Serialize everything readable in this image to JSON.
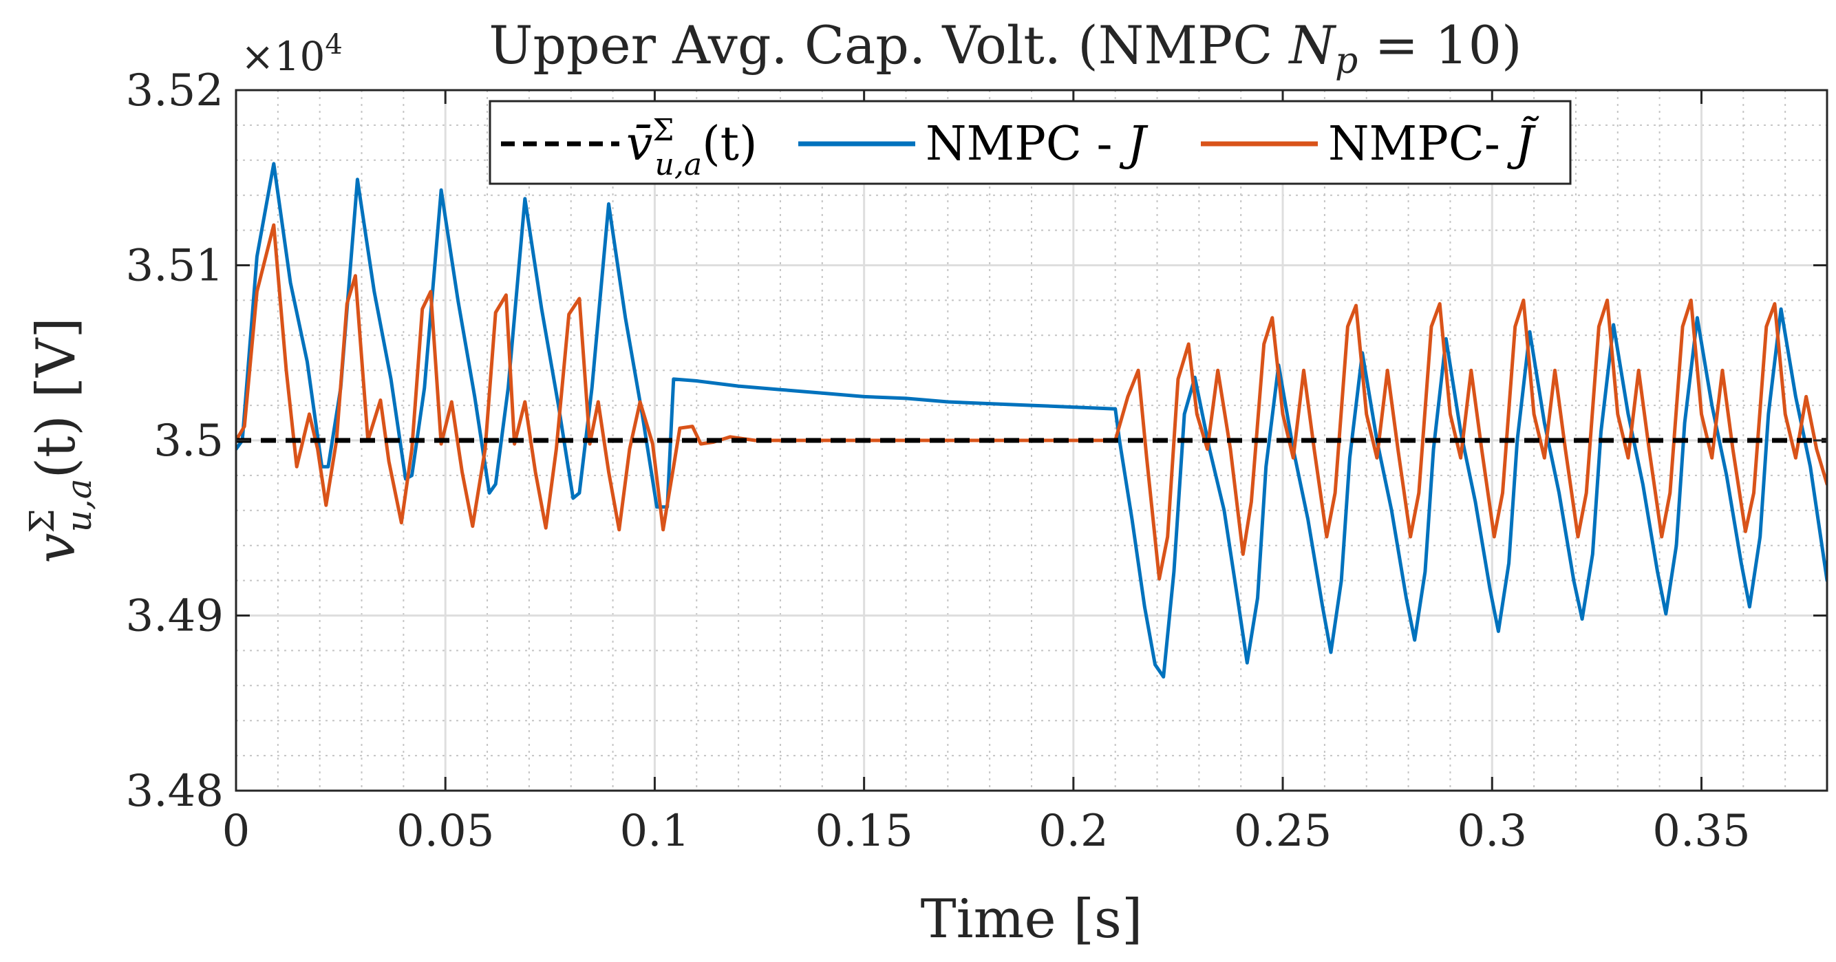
{
  "chart_data": {
    "type": "line",
    "title": "Upper Avg. Cap. Volt. (NMPC N_p = 10)",
    "title_parts": {
      "prefix": "Upper Avg. Cap. Volt. (NMPC ",
      "var": "N",
      "sub": "p",
      "suffix": " = 10)"
    },
    "xlabel": "Time [s]",
    "ylabel": {
      "var": "v",
      "sup": "Σ",
      "sub": "u,a",
      "rest": "(t) [V]"
    },
    "exponent": {
      "base": "×10",
      "power": "4"
    },
    "xlim": [
      0,
      0.38
    ],
    "ylim": [
      3.48,
      3.52
    ],
    "x_ticks": [
      0,
      0.05,
      0.1,
      0.15,
      0.2,
      0.25,
      0.3,
      0.35
    ],
    "x_tick_labels": [
      "0",
      "0.05",
      "0.1",
      "0.15",
      "0.2",
      "0.25",
      "0.3",
      "0.35"
    ],
    "y_ticks": [
      3.48,
      3.49,
      3.5,
      3.51,
      3.52
    ],
    "y_tick_labels": [
      "3.48",
      "3.49",
      "3.5",
      "3.51",
      "3.52"
    ],
    "grid": true,
    "minor_grid": true,
    "legend_position": "top-center",
    "series": [
      {
        "name": "v̄Σu,a(t)",
        "legend": {
          "var": "v̄",
          "sup": "Σ",
          "sub": "u,a",
          "rest": "(t)"
        },
        "style": "dashed",
        "color": "#000000",
        "x": [
          0,
          0.38
        ],
        "y": [
          3.5,
          3.5
        ]
      },
      {
        "name": "NMPC - J",
        "legend": {
          "text": "NMPC - ",
          "var": "J"
        },
        "style": "solid",
        "color": "#0072BD",
        "x": [
          0,
          0.0015,
          0.005,
          0.009,
          0.013,
          0.017,
          0.0205,
          0.022,
          0.025,
          0.029,
          0.033,
          0.037,
          0.0405,
          0.042,
          0.045,
          0.049,
          0.053,
          0.057,
          0.0605,
          0.062,
          0.065,
          0.069,
          0.073,
          0.077,
          0.0805,
          0.082,
          0.085,
          0.089,
          0.093,
          0.097,
          0.1005,
          0.103,
          0.1045,
          0.11,
          0.12,
          0.13,
          0.14,
          0.15,
          0.16,
          0.17,
          0.18,
          0.19,
          0.2,
          0.21,
          0.211,
          0.214,
          0.217,
          0.2195,
          0.2215,
          0.224,
          0.2265,
          0.229,
          0.2325,
          0.236,
          0.2395,
          0.2415,
          0.244,
          0.246,
          0.249,
          0.2525,
          0.256,
          0.2595,
          0.2615,
          0.264,
          0.266,
          0.269,
          0.2725,
          0.276,
          0.2795,
          0.2815,
          0.284,
          0.286,
          0.289,
          0.2925,
          0.296,
          0.2995,
          0.3015,
          0.304,
          0.306,
          0.309,
          0.3125,
          0.316,
          0.3195,
          0.3215,
          0.324,
          0.326,
          0.329,
          0.3325,
          0.336,
          0.3395,
          0.3415,
          0.344,
          0.346,
          0.349,
          0.3525,
          0.356,
          0.3595,
          0.3615,
          0.364,
          0.366,
          0.369,
          0.3725,
          0.376,
          0.38
        ],
        "y": [
          3.4995,
          3.5,
          3.5105,
          3.5158,
          3.509,
          3.5045,
          3.4985,
          3.4985,
          3.503,
          3.5149,
          3.5085,
          3.5035,
          3.4978,
          3.498,
          3.503,
          3.5143,
          3.508,
          3.5025,
          3.497,
          3.4975,
          3.503,
          3.5138,
          3.5075,
          3.502,
          3.4967,
          3.497,
          3.503,
          3.5135,
          3.507,
          3.5015,
          3.4962,
          3.4962,
          3.5035,
          3.5034,
          3.5031,
          3.5029,
          3.5027,
          3.5025,
          3.5024,
          3.5022,
          3.5021,
          3.502,
          3.5019,
          3.5018,
          3.5,
          3.4955,
          3.4905,
          3.4872,
          3.4865,
          3.4925,
          3.5015,
          3.5036,
          3.4995,
          3.496,
          3.4905,
          3.4873,
          3.491,
          3.4985,
          3.5043,
          3.4995,
          3.4955,
          3.4905,
          3.4879,
          3.492,
          3.499,
          3.505,
          3.5,
          3.496,
          3.491,
          3.4886,
          3.4925,
          3.4995,
          3.5058,
          3.5005,
          3.4965,
          3.4915,
          3.4891,
          3.493,
          3.5,
          3.5062,
          3.501,
          3.497,
          3.492,
          3.4898,
          3.4935,
          3.5005,
          3.5066,
          3.5015,
          3.4975,
          3.4925,
          3.4901,
          3.494,
          3.501,
          3.507,
          3.502,
          3.498,
          3.493,
          3.4905,
          3.4945,
          3.5015,
          3.5075,
          3.5025,
          3.4985,
          3.492
        ]
      },
      {
        "name": "NMPC- J̃",
        "legend": {
          "text": "NMPC- ",
          "var": "J̃"
        },
        "style": "solid",
        "color": "#D95319",
        "x": [
          0,
          0.002,
          0.005,
          0.009,
          0.012,
          0.0145,
          0.0175,
          0.0195,
          0.0215,
          0.024,
          0.0265,
          0.0285,
          0.0315,
          0.0345,
          0.0365,
          0.0395,
          0.042,
          0.0445,
          0.0465,
          0.049,
          0.0515,
          0.054,
          0.0565,
          0.0595,
          0.062,
          0.0645,
          0.0665,
          0.069,
          0.0715,
          0.074,
          0.0765,
          0.0795,
          0.082,
          0.0845,
          0.0865,
          0.089,
          0.0915,
          0.094,
          0.0965,
          0.0995,
          0.102,
          0.1045,
          0.106,
          0.109,
          0.111,
          0.114,
          0.118,
          0.121,
          0.124,
          0.128,
          0.131,
          0.14,
          0.16,
          0.18,
          0.2,
          0.21,
          0.213,
          0.2155,
          0.2175,
          0.2205,
          0.2225,
          0.225,
          0.2275,
          0.2295,
          0.232,
          0.2345,
          0.2375,
          0.2405,
          0.2425,
          0.2455,
          0.2475,
          0.25,
          0.2525,
          0.255,
          0.2575,
          0.2605,
          0.2625,
          0.2655,
          0.2675,
          0.27,
          0.2725,
          0.275,
          0.2775,
          0.2805,
          0.2825,
          0.2855,
          0.2875,
          0.29,
          0.2925,
          0.295,
          0.2975,
          0.3005,
          0.3025,
          0.3055,
          0.3075,
          0.31,
          0.3125,
          0.315,
          0.3175,
          0.3205,
          0.3225,
          0.3255,
          0.3275,
          0.33,
          0.3325,
          0.335,
          0.3375,
          0.3405,
          0.3425,
          0.3455,
          0.3475,
          0.35,
          0.3525,
          0.355,
          0.3575,
          0.3605,
          0.3625,
          0.3655,
          0.3675,
          0.37,
          0.3725,
          0.375,
          0.3775,
          0.38
        ],
        "y": [
          3.5,
          3.5008,
          3.5085,
          3.5123,
          3.504,
          3.4985,
          3.5015,
          3.4995,
          3.4963,
          3.5,
          3.5078,
          3.5094,
          3.5,
          3.5023,
          3.4988,
          3.4953,
          3.4995,
          3.5075,
          3.5085,
          3.4998,
          3.5022,
          3.4982,
          3.4951,
          3.4995,
          3.5073,
          3.5083,
          3.4998,
          3.5022,
          3.4982,
          3.495,
          3.4995,
          3.5072,
          3.5081,
          3.4998,
          3.5022,
          3.4982,
          3.4949,
          3.4995,
          3.5022,
          3.4998,
          3.4949,
          3.4985,
          3.5007,
          3.5008,
          3.4998,
          3.4999,
          3.5002,
          3.5001,
          3.5,
          3.5,
          3.5,
          3.5,
          3.5,
          3.5,
          3.5,
          3.5,
          3.5025,
          3.504,
          3.499,
          3.4921,
          3.4945,
          3.5035,
          3.5055,
          3.5015,
          3.4995,
          3.504,
          3.4995,
          3.4935,
          3.4965,
          3.5055,
          3.507,
          3.5015,
          3.499,
          3.504,
          3.4995,
          3.4945,
          3.497,
          3.5065,
          3.5077,
          3.5015,
          3.499,
          3.504,
          3.4995,
          3.4945,
          3.497,
          3.5065,
          3.5078,
          3.5015,
          3.499,
          3.504,
          3.4995,
          3.4945,
          3.497,
          3.5065,
          3.508,
          3.5015,
          3.499,
          3.504,
          3.4995,
          3.4945,
          3.497,
          3.5065,
          3.508,
          3.5015,
          3.499,
          3.504,
          3.4995,
          3.4945,
          3.497,
          3.5065,
          3.508,
          3.5015,
          3.499,
          3.504,
          3.4995,
          3.4948,
          3.497,
          3.5065,
          3.5078,
          3.5015,
          3.499,
          3.5025,
          3.4995,
          3.4975
        ]
      }
    ]
  }
}
